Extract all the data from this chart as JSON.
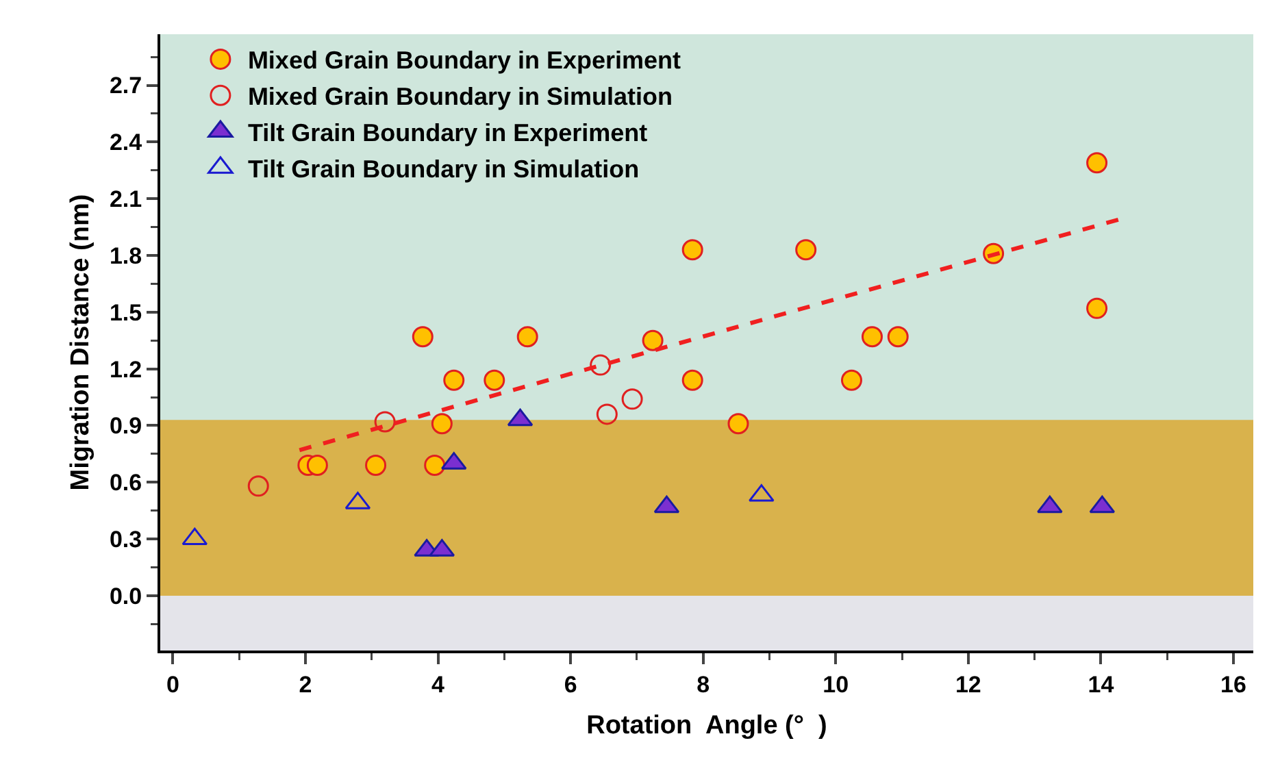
{
  "chart_data": {
    "type": "scatter",
    "xlabel": "Rotation  Angle (°  )",
    "ylabel": "Migration Distance (nm)",
    "xlim": [
      -0.19,
      16.3
    ],
    "ylim": [
      -0.29,
      2.97
    ],
    "xticks": [
      0,
      2,
      4,
      6,
      8,
      10,
      12,
      14,
      16
    ],
    "yticks": [
      {
        "value": 0,
        "label": "0.0"
      },
      0.3,
      0.6,
      0.9,
      1.2,
      1.5,
      1.8,
      2.1,
      2.4,
      2.7
    ],
    "grid": false,
    "legend": "top left",
    "bands": [
      {
        "axis": "y",
        "from": 0,
        "to": 0.93,
        "color": "#d9b24c"
      },
      {
        "axis": "y",
        "from": -0.29,
        "to": 0,
        "color": "#e4e4ea"
      }
    ],
    "series": [
      {
        "name": "Mixed Grain Boundary in Experiment",
        "marker": "circle",
        "color": "#ffc000",
        "x": [
          3.77,
          5.35,
          4.24,
          4.85,
          4.06,
          2.04,
          2.18,
          3.06,
          3.95,
          7.24,
          7.84,
          7.84,
          8.53,
          9.55,
          10.24,
          10.55,
          10.94,
          12.38,
          13.94,
          13.94
        ],
        "values": [
          1.37,
          1.37,
          1.14,
          1.14,
          0.91,
          0.69,
          0.69,
          0.69,
          0.69,
          1.35,
          1.83,
          1.14,
          0.91,
          1.83,
          1.14,
          1.37,
          1.37,
          1.81,
          2.29,
          1.52
        ]
      },
      {
        "name": "Mixed Grain Boundary in Simulation",
        "marker": "circle",
        "color": "#e02020",
        "x": [
          1.29,
          3.2,
          6.45,
          6.93,
          6.55
        ],
        "values": [
          0.58,
          0.92,
          1.22,
          1.04,
          0.96
        ]
      },
      {
        "name": "Tilt Grain Boundary in Experiment",
        "marker": "triangle",
        "color": "#7b2fd0",
        "x": [
          5.24,
          4.24,
          3.83,
          4.06,
          7.45,
          13.23,
          14.02
        ],
        "values": [
          0.93,
          0.7,
          0.24,
          0.24,
          0.47,
          0.47,
          0.47
        ]
      },
      {
        "name": "Tilt Grain Boundary in Simulation",
        "marker": "triangle",
        "color": "#1a1ad0",
        "x": [
          0.33,
          2.79,
          8.88
        ],
        "values": [
          0.3,
          0.49,
          0.53
        ]
      },
      {
        "type": "line",
        "marker": "none",
        "line_style": "dashed",
        "color": "#f02020",
        "x": [
          1.91,
          14.27
        ],
        "values": [
          0.77,
          1.99
        ]
      }
    ]
  }
}
